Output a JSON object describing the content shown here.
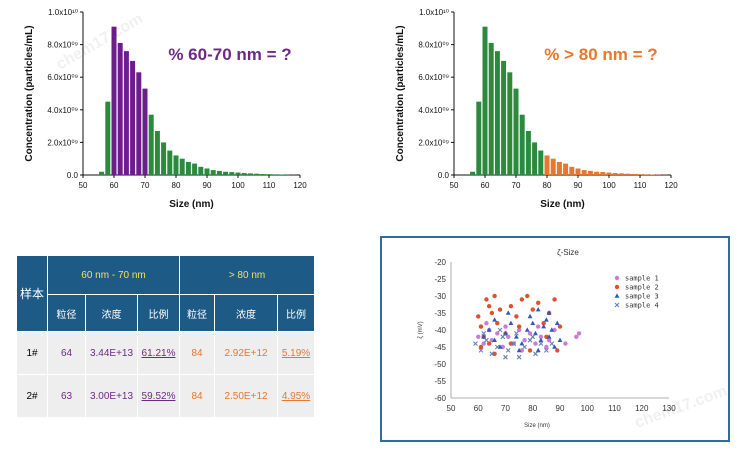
{
  "chart_data": [
    {
      "type": "bar",
      "title": "% 60-70 nm = ?",
      "title_color": "#6b2a84",
      "xlabel": "Size (nm)",
      "ylabel": "Concentration (particles/mL)",
      "xlim": [
        50,
        120
      ],
      "ylim": [
        0,
        10000000000
      ],
      "x_ticks": [
        "50",
        "60",
        "70",
        "80",
        "90",
        "100",
        "110",
        "120"
      ],
      "y_ticks": [
        "0.0",
        "2.0x10⁰⁹",
        "4.0x10⁰⁹",
        "6.0x10⁰⁹",
        "8.0x10⁰⁹",
        "1.0x10¹⁰"
      ],
      "highlight_range": [
        60,
        70
      ],
      "highlight_color": "#6b1e8c",
      "base_color": "#2b8a3e",
      "x": [
        56,
        58,
        60,
        62,
        64,
        66,
        68,
        70,
        72,
        74,
        76,
        78,
        80,
        82,
        84,
        86,
        88,
        90,
        92,
        94,
        96,
        98,
        100,
        102,
        104,
        106,
        108,
        110,
        112,
        114,
        116,
        118
      ],
      "values": [
        200000000,
        4500000000,
        9100000000,
        8100000000,
        7600000000,
        7000000000,
        6300000000,
        5300000000,
        3700000000,
        2700000000,
        2000000000,
        1500000000,
        1200000000,
        1000000000,
        800000000,
        700000000,
        500000000,
        400000000,
        300000000,
        250000000,
        200000000,
        180000000,
        150000000,
        120000000,
        100000000,
        80000000,
        60000000,
        50000000,
        40000000,
        30000000,
        20000000,
        10000000
      ]
    },
    {
      "type": "bar",
      "title": "% > 80 nm = ?",
      "title_color": "#e8762c",
      "xlabel": "Size (nm)",
      "ylabel": "Concentration (particles/mL)",
      "xlim": [
        50,
        120
      ],
      "ylim": [
        0,
        10000000000
      ],
      "x_ticks": [
        "50",
        "60",
        "70",
        "80",
        "90",
        "100",
        "110",
        "120"
      ],
      "y_ticks": [
        "0.0",
        "2.0x10⁰⁹",
        "4.0x10⁰⁹",
        "6.0x10⁰⁹",
        "8.0x10⁰⁹",
        "1.0x10¹⁰"
      ],
      "highlight_range": [
        80,
        120
      ],
      "highlight_color": "#e8762c",
      "base_color": "#2b8a3e",
      "x": [
        56,
        58,
        60,
        62,
        64,
        66,
        68,
        70,
        72,
        74,
        76,
        78,
        80,
        82,
        84,
        86,
        88,
        90,
        92,
        94,
        96,
        98,
        100,
        102,
        104,
        106,
        108,
        110,
        112,
        114,
        116,
        118
      ],
      "values": [
        200000000,
        4500000000,
        9100000000,
        8100000000,
        7600000000,
        7000000000,
        6300000000,
        5300000000,
        3700000000,
        2700000000,
        2000000000,
        1500000000,
        1200000000,
        1000000000,
        800000000,
        700000000,
        500000000,
        400000000,
        300000000,
        250000000,
        200000000,
        180000000,
        150000000,
        120000000,
        100000000,
        80000000,
        60000000,
        50000000,
        40000000,
        30000000,
        20000000,
        10000000
      ]
    },
    {
      "type": "table",
      "row_header": "样本",
      "group_headers": [
        "60 nm - 70 nm",
        "> 80 nm"
      ],
      "sub_headers": [
        "粒径",
        "浓度",
        "比例",
        "粒径",
        "浓度",
        "比例"
      ],
      "rows": [
        {
          "label": "1#",
          "cells": [
            "64",
            "3.44E+13",
            "61.21%",
            "84",
            "2.92E+12",
            "5.19%"
          ]
        },
        {
          "label": "2#",
          "cells": [
            "63",
            "3.00E+13",
            "59.52%",
            "84",
            "2.50E+12",
            "4.95%"
          ]
        }
      ]
    },
    {
      "type": "scatter",
      "title": "ζ-Size",
      "xlabel": "Size (nm)",
      "ylabel": "ζ (mV)",
      "xlim": [
        50,
        130
      ],
      "ylim": [
        -60,
        -20
      ],
      "x_ticks": [
        "50",
        "60",
        "70",
        "80",
        "90",
        "100",
        "110",
        "120",
        "130"
      ],
      "y_ticks": [
        "-20",
        "-25",
        "-30",
        "-35",
        "-40",
        "-45",
        "-50",
        "-55",
        "-60"
      ],
      "series": [
        {
          "name": "sample 1",
          "color": "#c77dd6",
          "marker": "circle",
          "points": [
            [
              60,
              -42
            ],
            [
              62,
              -44
            ],
            [
              64,
              -40
            ],
            [
              65,
              -43
            ],
            [
              67,
              -41
            ],
            [
              69,
              -45
            ],
            [
              71,
              -42
            ],
            [
              73,
              -44
            ],
            [
              75,
              -40
            ],
            [
              77,
              -43
            ],
            [
              79,
              -41
            ],
            [
              81,
              -44
            ],
            [
              83,
              -42
            ],
            [
              85,
              -45
            ],
            [
              88,
              -40
            ],
            [
              92,
              -44
            ],
            [
              96,
              -42
            ],
            [
              97,
              -41
            ],
            [
              63,
              -38
            ],
            [
              70,
              -39
            ],
            [
              76,
              -46
            ],
            [
              82,
              -39
            ],
            [
              86,
              -43
            ]
          ]
        },
        {
          "name": "sample 2",
          "color": "#e0502a",
          "marker": "circle",
          "points": [
            [
              60,
              -36
            ],
            [
              61,
              -39
            ],
            [
              62,
              -42
            ],
            [
              63,
              -31
            ],
            [
              64,
              -33
            ],
            [
              65,
              -35
            ],
            [
              66,
              -30
            ],
            [
              67,
              -38
            ],
            [
              68,
              -34
            ],
            [
              70,
              -41
            ],
            [
              72,
              -33
            ],
            [
              74,
              -36
            ],
            [
              76,
              -31
            ],
            [
              78,
              -30
            ],
            [
              80,
              -34
            ],
            [
              82,
              -32
            ],
            [
              84,
              -38
            ],
            [
              86,
              -35
            ],
            [
              88,
              -31
            ],
            [
              90,
              -39
            ],
            [
              61,
              -45
            ],
            [
              66,
              -47
            ],
            [
              72,
              -44
            ],
            [
              79,
              -46
            ],
            [
              85,
              -42
            ],
            [
              89,
              -46
            ],
            [
              64,
              -44
            ],
            [
              75,
              -39
            ]
          ]
        },
        {
          "name": "sample 3",
          "color": "#2f58b8",
          "marker": "triangle",
          "points": [
            [
              62,
              -42
            ],
            [
              64,
              -40
            ],
            [
              66,
              -43
            ],
            [
              68,
              -45
            ],
            [
              70,
              -41
            ],
            [
              72,
              -38
            ],
            [
              74,
              -42
            ],
            [
              76,
              -44
            ],
            [
              78,
              -40
            ],
            [
              79,
              -36
            ],
            [
              80,
              -38
            ],
            [
              81,
              -41
            ],
            [
              82,
              -34
            ],
            [
              83,
              -43
            ],
            [
              84,
              -39
            ],
            [
              85,
              -37
            ],
            [
              86,
              -42
            ],
            [
              87,
              -40
            ],
            [
              88,
              -45
            ],
            [
              89,
              -38
            ],
            [
              90,
              -43
            ],
            [
              75,
              -46
            ],
            [
              71,
              -35
            ],
            [
              66,
              -37
            ],
            [
              82,
              -46
            ],
            [
              86,
              -35
            ]
          ]
        },
        {
          "name": "sample 4",
          "color": "#6b7fb5",
          "marker": "x",
          "points": [
            [
              59,
              -44
            ],
            [
              61,
              -46
            ],
            [
              63,
              -43
            ],
            [
              65,
              -47
            ],
            [
              67,
              -45
            ],
            [
              69,
              -42
            ],
            [
              71,
              -46
            ],
            [
              73,
              -44
            ],
            [
              75,
              -48
            ],
            [
              77,
              -45
            ],
            [
              79,
              -43
            ],
            [
              81,
              -47
            ],
            [
              83,
              -44
            ],
            [
              85,
              -46
            ],
            [
              62,
              -41
            ],
            [
              68,
              -40
            ],
            [
              74,
              -41
            ],
            [
              80,
              -42
            ],
            [
              87,
              -44
            ],
            [
              70,
              -48
            ]
          ]
        }
      ]
    }
  ],
  "watermarks": [
    "chem17.com",
    "chem17.com"
  ]
}
